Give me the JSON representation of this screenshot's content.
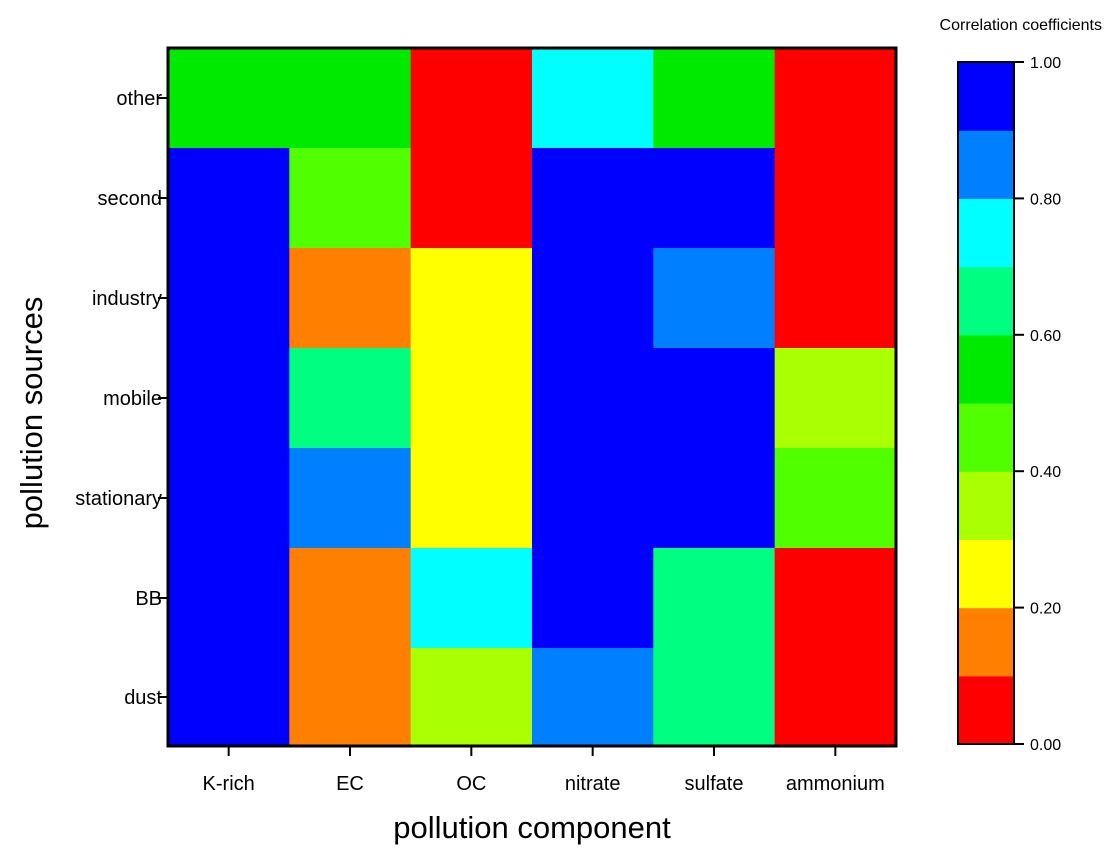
{
  "chart_data": {
    "type": "heatmap",
    "xlabel": "pollution component",
    "ylabel": "pollution sources",
    "x_categories": [
      "K-rich",
      "EC",
      "OC",
      "nitrate",
      "sulfate",
      "ammonium"
    ],
    "y_categories": [
      "other",
      "second",
      "industry",
      "mobile",
      "stationary",
      "BB",
      "dust"
    ],
    "values": [
      [
        0.55,
        0.55,
        0.05,
        0.75,
        0.55,
        0.05
      ],
      [
        0.95,
        0.45,
        0.05,
        0.95,
        0.95,
        0.05
      ],
      [
        0.95,
        0.15,
        0.25,
        0.95,
        0.85,
        0.05
      ],
      [
        0.95,
        0.65,
        0.25,
        0.95,
        0.95,
        0.35
      ],
      [
        0.95,
        0.85,
        0.25,
        0.95,
        0.95,
        0.45
      ],
      [
        0.95,
        0.15,
        0.75,
        0.95,
        0.65,
        0.05
      ],
      [
        0.95,
        0.15,
        0.35,
        0.85,
        0.65,
        0.05
      ]
    ],
    "colorbar": {
      "title": "Correlation coefficients",
      "range": [
        0,
        1
      ],
      "tick_labels": [
        "0.00",
        "0.20",
        "0.40",
        "0.60",
        "0.80",
        "1.00"
      ],
      "tick_values": [
        0,
        0.2,
        0.4,
        0.6,
        0.8,
        1.0
      ],
      "bins": [
        {
          "from": 0.0,
          "to": 0.1,
          "color": "#ff0000"
        },
        {
          "from": 0.1,
          "to": 0.2,
          "color": "#ff8000"
        },
        {
          "from": 0.2,
          "to": 0.3,
          "color": "#ffff00"
        },
        {
          "from": 0.3,
          "to": 0.4,
          "color": "#aaff00"
        },
        {
          "from": 0.4,
          "to": 0.5,
          "color": "#50ff00"
        },
        {
          "from": 0.5,
          "to": 0.6,
          "color": "#00ea00"
        },
        {
          "from": 0.6,
          "to": 0.7,
          "color": "#00ff80"
        },
        {
          "from": 0.7,
          "to": 0.8,
          "color": "#00ffff"
        },
        {
          "from": 0.8,
          "to": 0.9,
          "color": "#0080ff"
        },
        {
          "from": 0.9,
          "to": 1.0,
          "color": "#0000ff"
        }
      ]
    },
    "grid": false,
    "legend": "colorbar right"
  }
}
